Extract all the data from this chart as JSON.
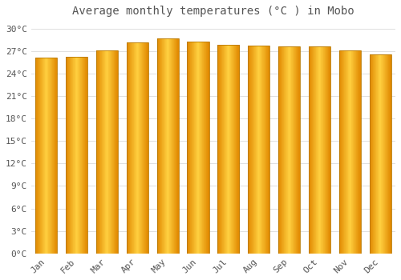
{
  "title": "Average monthly temperatures (°C ) in Mobo",
  "months": [
    "Jan",
    "Feb",
    "Mar",
    "Apr",
    "May",
    "Jun",
    "Jul",
    "Aug",
    "Sep",
    "Oct",
    "Nov",
    "Dec"
  ],
  "values": [
    26.1,
    26.2,
    27.1,
    28.2,
    28.7,
    28.3,
    27.8,
    27.7,
    27.6,
    27.6,
    27.1,
    26.5
  ],
  "bar_color_center": "#FFD040",
  "bar_color_edge": "#E08800",
  "background_color": "#FFFFFF",
  "grid_color": "#E0E0E0",
  "text_color": "#555555",
  "ylim": [
    0,
    31
  ],
  "yticks": [
    0,
    3,
    6,
    9,
    12,
    15,
    18,
    21,
    24,
    27,
    30
  ],
  "ytick_labels": [
    "0°C",
    "3°C",
    "6°C",
    "9°C",
    "12°C",
    "15°C",
    "18°C",
    "21°C",
    "24°C",
    "27°C",
    "30°C"
  ],
  "title_fontsize": 10,
  "tick_fontsize": 8
}
